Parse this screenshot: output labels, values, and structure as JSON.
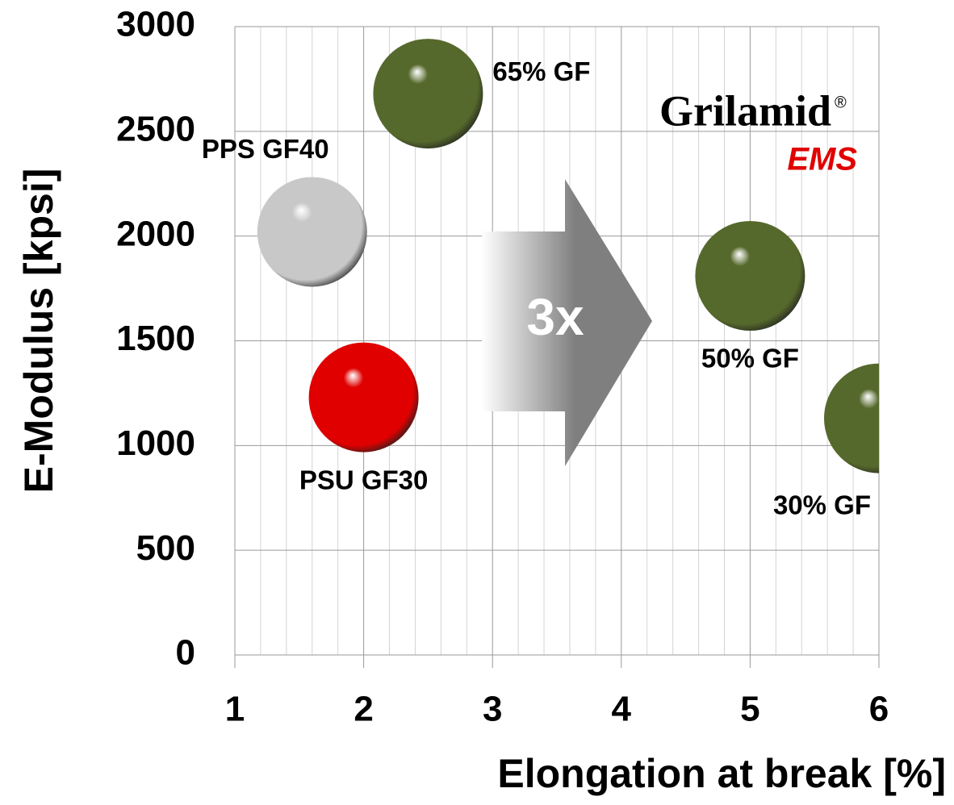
{
  "chart_data": {
    "type": "scatter",
    "x_label": "Elongation at break [%]",
    "y_label": "E-Modulus [kpsi]",
    "x": [
      2.5,
      1.6,
      2.0,
      5.0,
      6.0
    ],
    "values": [
      2680,
      2020,
      1230,
      1810,
      1130
    ],
    "point_labels": [
      "65% GF",
      "PPS GF40",
      "PSU GF30",
      "50% GF",
      "30% GF"
    ],
    "colors": [
      "#56692c",
      "#c8c8c8",
      "#e00000",
      "#56692c",
      "#56692c"
    ],
    "xlim": [
      1,
      6
    ],
    "ylim": [
      0,
      3000
    ],
    "xticks": [
      1,
      2,
      3,
      4,
      5,
      6
    ],
    "yticks": [
      0,
      500,
      1000,
      1500,
      2000,
      2500,
      3000
    ],
    "grid": true,
    "minor_grid": true,
    "arrow_label": "3x",
    "logo_name": "Grilamid",
    "logo_mark": "®",
    "logo_brand": "EMS"
  }
}
